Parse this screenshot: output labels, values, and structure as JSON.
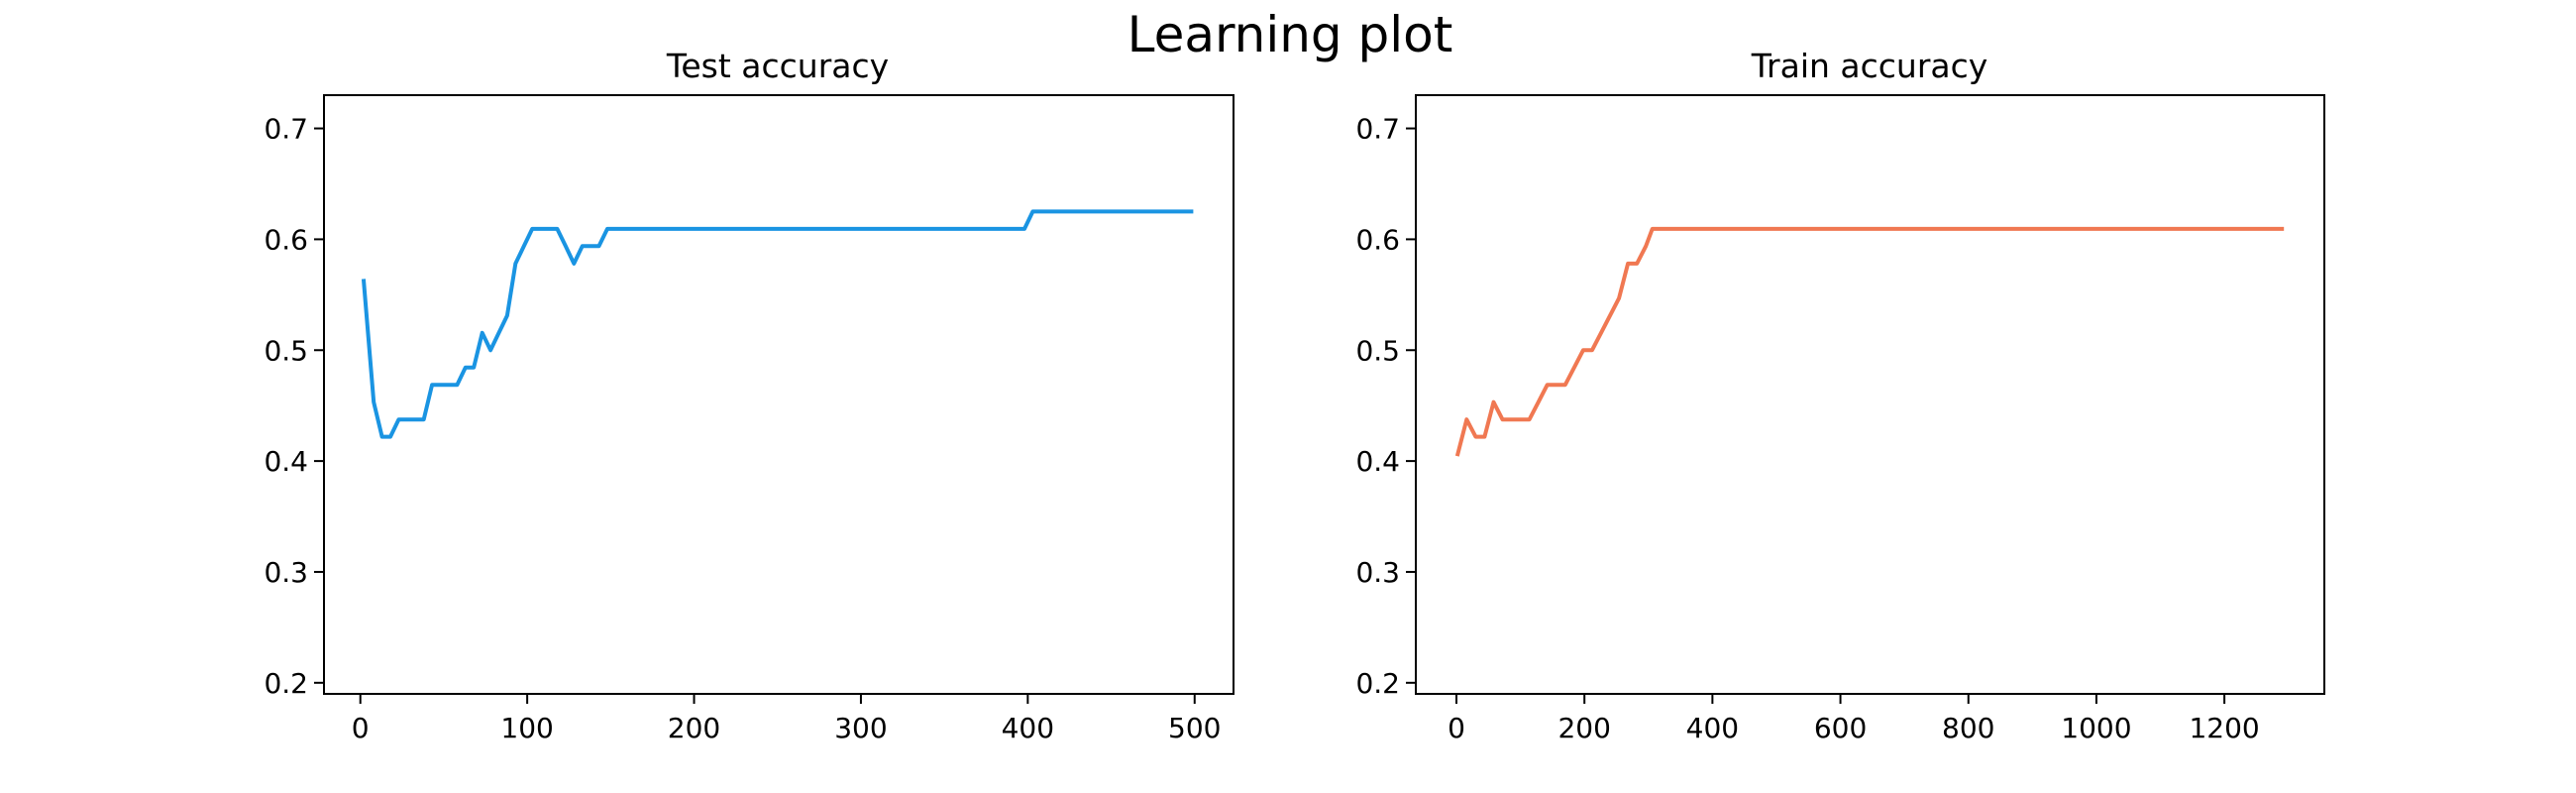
{
  "figure": {
    "title": "Learning plot"
  },
  "chart_data": [
    {
      "type": "line",
      "title": "Test accuracy",
      "xlabel": "",
      "ylabel": "",
      "xlim": [
        -21.8,
        523.3
      ],
      "ylim": [
        0.19,
        0.73
      ],
      "xticks": [
        0,
        100,
        200,
        300,
        400,
        500
      ],
      "yticks": [
        0.2,
        0.3,
        0.4,
        0.5,
        0.6,
        0.7
      ],
      "xtick_labels": [
        "0",
        "100",
        "200",
        "300",
        "400",
        "500"
      ],
      "ytick_labels": [
        "0.2",
        "0.3",
        "0.4",
        "0.5",
        "0.6",
        "0.7"
      ],
      "grid": false,
      "series": [
        {
          "color": "#1a94e2",
          "x": [
            2,
            8,
            13,
            18,
            23,
            28,
            33,
            38,
            43,
            48,
            53,
            58,
            63,
            68,
            73,
            78,
            83,
            88,
            93,
            98,
            103,
            108,
            113,
            118,
            123,
            128,
            133,
            138,
            143,
            148,
            153,
            398,
            403,
            408,
            498
          ],
          "y": [
            0.5625,
            0.4531,
            0.4219,
            0.4219,
            0.4375,
            0.4375,
            0.4375,
            0.4375,
            0.4688,
            0.4688,
            0.4688,
            0.4688,
            0.4844,
            0.4844,
            0.5156,
            0.5,
            0.5156,
            0.5312,
            0.5781,
            0.5938,
            0.6094,
            0.6094,
            0.6094,
            0.6094,
            0.5938,
            0.5781,
            0.5938,
            0.5938,
            0.5938,
            0.6094,
            0.6094,
            0.6094,
            0.625,
            0.625,
            0.625
          ]
        }
      ]
    },
    {
      "type": "line",
      "title": "Train accuracy",
      "xlabel": "",
      "ylabel": "",
      "xlim": [
        -63.5,
        1356.2
      ],
      "ylim": [
        0.19,
        0.73
      ],
      "xticks": [
        0,
        200,
        400,
        600,
        800,
        1000,
        1200
      ],
      "yticks": [
        0.2,
        0.3,
        0.4,
        0.5,
        0.6,
        0.7
      ],
      "xtick_labels": [
        "0",
        "200",
        "400",
        "600",
        "800",
        "1000",
        "1200"
      ],
      "ytick_labels": [
        "0.2",
        "0.3",
        "0.4",
        "0.5",
        "0.6",
        "0.7"
      ],
      "grid": false,
      "series": [
        {
          "color": "#f07852",
          "x": [
            2,
            16,
            30,
            44,
            58,
            72,
            86,
            100,
            114,
            128,
            142,
            156,
            170,
            184,
            198,
            212,
            226,
            240,
            254,
            268,
            282,
            296,
            306,
            1290
          ],
          "y": [
            0.4062,
            0.4375,
            0.4219,
            0.4219,
            0.4531,
            0.4375,
            0.4375,
            0.4375,
            0.4375,
            0.4531,
            0.4688,
            0.4688,
            0.4688,
            0.4844,
            0.5,
            0.5,
            0.5156,
            0.5312,
            0.5469,
            0.5781,
            0.5781,
            0.5938,
            0.6094,
            0.6094
          ]
        }
      ]
    }
  ]
}
